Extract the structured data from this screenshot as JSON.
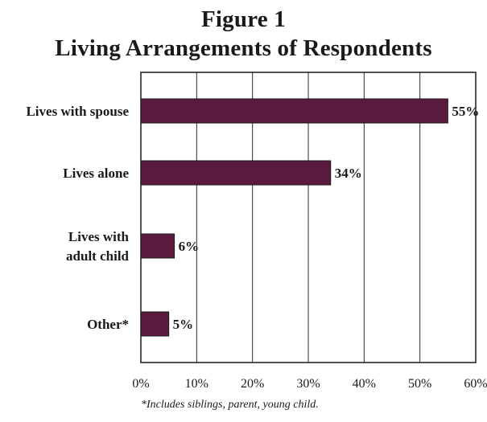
{
  "chart_data": {
    "type": "bar",
    "orientation": "horizontal",
    "title": "Figure 1",
    "subtitle": "Living Arrangements of Respondents",
    "categories": [
      [
        "Lives with spouse"
      ],
      [
        "Lives alone"
      ],
      [
        "Lives with",
        "adult child"
      ],
      [
        "Other*"
      ]
    ],
    "values": [
      55,
      34,
      6,
      5
    ],
    "data_labels": [
      "55%",
      "34%",
      "6%",
      "5%"
    ],
    "xlim": [
      0,
      60
    ],
    "xticks": [
      0,
      10,
      20,
      30,
      40,
      50,
      60
    ],
    "xtick_labels": [
      "0%",
      "10%",
      "20%",
      "30%",
      "40%",
      "50%",
      "60%"
    ],
    "grid": "vertical",
    "bar_color": "#5a1a3e",
    "footnote": "*Includes siblings, parent, young child."
  }
}
